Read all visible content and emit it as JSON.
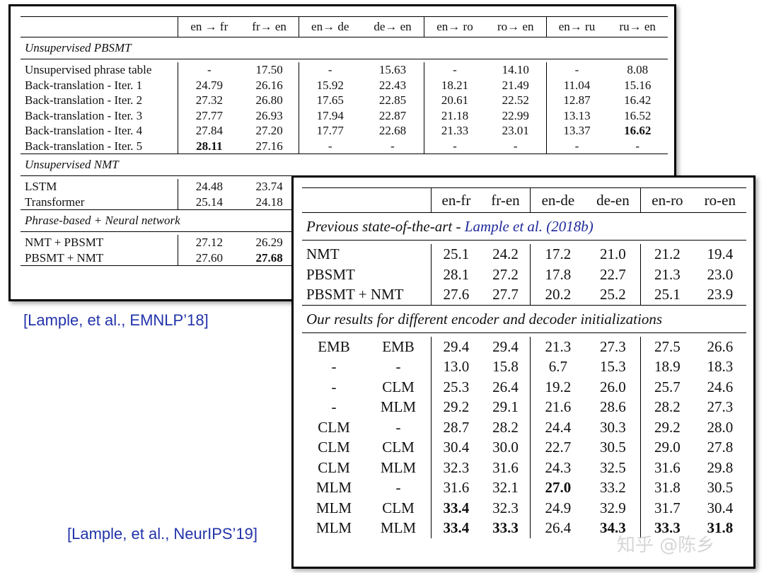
{
  "table1": {
    "headers": [
      "",
      "en → fr",
      "fr→ en",
      "en→ de",
      "de→ en",
      "en→ ro",
      "ro→ en",
      "en→ ru",
      "ru→ en"
    ],
    "sections": [
      {
        "title": "Unsupervised PBSMT",
        "rows": [
          {
            "label": "Unsupervised phrase table",
            "values": [
              "-",
              "17.50",
              "-",
              "15.63",
              "-",
              "14.10",
              "-",
              "8.08"
            ]
          },
          {
            "label": "Back-translation - Iter. 1",
            "values": [
              "24.79",
              "26.16",
              "15.92",
              "22.43",
              "18.21",
              "21.49",
              "11.04",
              "15.16"
            ]
          },
          {
            "label": "Back-translation - Iter. 2",
            "values": [
              "27.32",
              "26.80",
              "17.65",
              "22.85",
              "20.61",
              "22.52",
              "12.87",
              "16.42"
            ]
          },
          {
            "label": "Back-translation - Iter. 3",
            "values": [
              "27.77",
              "26.93",
              "17.94",
              "22.87",
              "21.18",
              "22.99",
              "13.13",
              "16.52"
            ]
          },
          {
            "label": "Back-translation - Iter. 4",
            "values": [
              "27.84",
              "27.20",
              "17.77",
              "22.68",
              "21.33",
              "23.01",
              "13.37",
              "16.62"
            ]
          },
          {
            "label": "Back-translation - Iter. 5",
            "values": [
              "28.11",
              "27.16",
              "-",
              "-",
              "-",
              "-",
              "-",
              "-"
            ]
          }
        ]
      },
      {
        "title": "Unsupervised NMT",
        "rows": [
          {
            "label": "LSTM",
            "values": [
              "24.48",
              "23.74",
              "",
              "",
              "",
              "",
              "",
              ""
            ]
          },
          {
            "label": "Transformer",
            "values": [
              "25.14",
              "24.18",
              "",
              "",
              "",
              "",
              "",
              ""
            ]
          }
        ]
      },
      {
        "title": "Phrase-based + Neural network",
        "rows": [
          {
            "label": "NMT + PBSMT",
            "values": [
              "27.12",
              "26.29",
              "",
              "",
              "",
              "",
              "",
              ""
            ]
          },
          {
            "label": "PBSMT + NMT",
            "values": [
              "27.60",
              "27.68",
              "",
              "",
              "",
              "",
              "",
              ""
            ]
          }
        ]
      }
    ]
  },
  "table2": {
    "headers": [
      "en-fr",
      "fr-en",
      "en-de",
      "de-en",
      "en-ro",
      "ro-en"
    ],
    "section1": {
      "title": "Previous state-of-the-art - ",
      "citation": "Lample et al. (2018b)",
      "rows": [
        {
          "label": "NMT",
          "values": [
            "25.1",
            "24.2",
            "17.2",
            "21.0",
            "21.2",
            "19.4"
          ]
        },
        {
          "label": "PBSMT",
          "values": [
            "28.1",
            "27.2",
            "17.8",
            "22.7",
            "21.3",
            "23.0"
          ]
        },
        {
          "label": "PBSMT + NMT",
          "values": [
            "27.6",
            "27.7",
            "20.2",
            "25.2",
            "25.1",
            "23.9"
          ]
        }
      ]
    },
    "section2": {
      "title": "Our results for different encoder and decoder initializations",
      "rows": [
        {
          "enc": "EMB",
          "dec": "EMB",
          "values": [
            "29.4",
            "29.4",
            "21.3",
            "27.3",
            "27.5",
            "26.6"
          ]
        },
        {
          "enc": "-",
          "dec": "-",
          "values": [
            "13.0",
            "15.8",
            "6.7",
            "15.3",
            "18.9",
            "18.3"
          ]
        },
        {
          "enc": "-",
          "dec": "CLM",
          "values": [
            "25.3",
            "26.4",
            "19.2",
            "26.0",
            "25.7",
            "24.6"
          ]
        },
        {
          "enc": "-",
          "dec": "MLM",
          "values": [
            "29.2",
            "29.1",
            "21.6",
            "28.6",
            "28.2",
            "27.3"
          ]
        },
        {
          "enc": "CLM",
          "dec": "-",
          "values": [
            "28.7",
            "28.2",
            "24.4",
            "30.3",
            "29.2",
            "28.0"
          ]
        },
        {
          "enc": "CLM",
          "dec": "CLM",
          "values": [
            "30.4",
            "30.0",
            "22.7",
            "30.5",
            "29.0",
            "27.8"
          ]
        },
        {
          "enc": "CLM",
          "dec": "MLM",
          "values": [
            "32.3",
            "31.6",
            "24.3",
            "32.5",
            "31.6",
            "29.8"
          ]
        },
        {
          "enc": "MLM",
          "dec": "-",
          "values": [
            "31.6",
            "32.1",
            "27.0",
            "33.2",
            "31.8",
            "30.5"
          ]
        },
        {
          "enc": "MLM",
          "dec": "CLM",
          "values": [
            "33.4",
            "32.3",
            "24.9",
            "32.9",
            "31.7",
            "30.4"
          ]
        },
        {
          "enc": "MLM",
          "dec": "MLM",
          "values": [
            "33.4",
            "33.3",
            "26.4",
            "34.3",
            "33.3",
            "31.8"
          ]
        }
      ]
    }
  },
  "references": {
    "ref1": "[Lample, et al., EMNLP’18]",
    "ref2": "[Lample, et al., NeurIPS’19]"
  },
  "watermark": "知乎 @陈乡",
  "colors": {
    "reference_text": "#2233aa",
    "citation_link": "#1f2a9a"
  }
}
